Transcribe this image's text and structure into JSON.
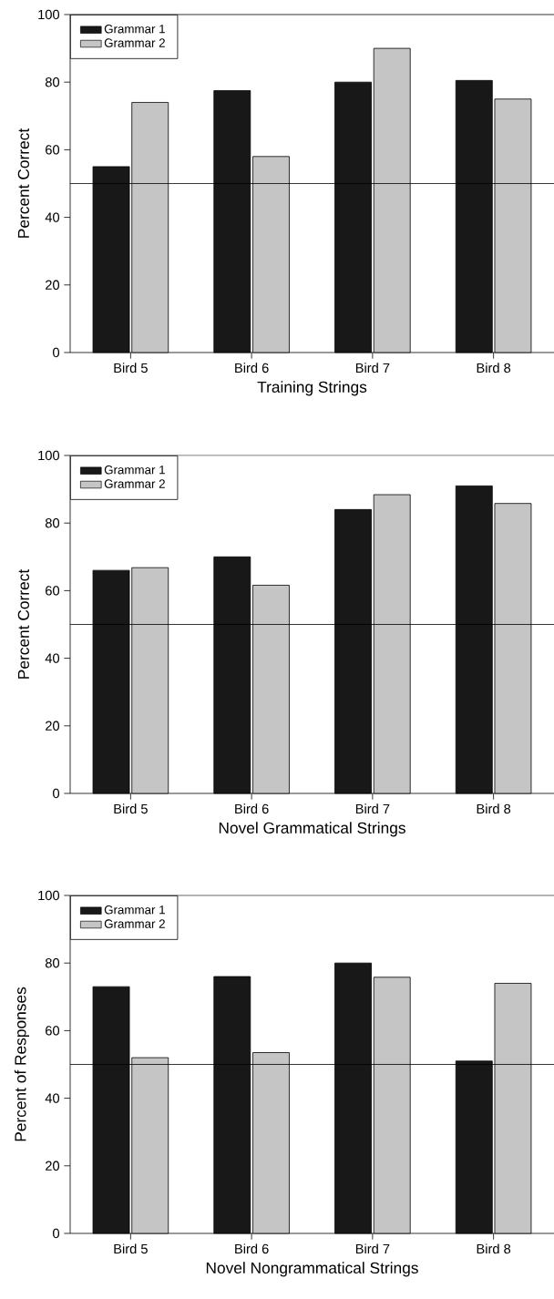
{
  "chart_data": [
    {
      "type": "bar",
      "xlabel": "Training Strings",
      "ylabel": "Percent Correct",
      "categories": [
        "Bird 5",
        "Bird 6",
        "Bird 7",
        "Bird 8"
      ],
      "series": [
        {
          "name": "Grammar 1",
          "color": "#181818",
          "values": [
            55,
            77.5,
            80,
            80.5
          ]
        },
        {
          "name": "Grammar 2",
          "color": "#c4c5c4",
          "values": [
            74,
            58,
            90,
            75
          ]
        }
      ],
      "ylim": [
        0,
        100
      ],
      "yticks": [
        0,
        20,
        40,
        60,
        80,
        100
      ],
      "legend": "top left",
      "ref_lines": [
        {
          "axis": "y",
          "value": 50
        }
      ]
    },
    {
      "type": "bar",
      "xlabel": "Novel Grammatical Strings",
      "ylabel": "Percent Correct",
      "categories": [
        "Bird 5",
        "Bird 6",
        "Bird 7",
        "Bird 8"
      ],
      "series": [
        {
          "name": "Grammar 1",
          "color": "#181818",
          "values": [
            66,
            70,
            84,
            91
          ]
        },
        {
          "name": "Grammar 2",
          "color": "#c4c5c4",
          "values": [
            66.8,
            61.6,
            88.4,
            85.8
          ]
        }
      ],
      "ylim": [
        0,
        100
      ],
      "yticks": [
        0,
        20,
        40,
        60,
        80,
        100
      ],
      "legend": "top left",
      "ref_lines": [
        {
          "axis": "y",
          "value": 50
        }
      ]
    },
    {
      "type": "bar",
      "xlabel": "Novel Nongrammatical Strings",
      "ylabel": "Percent of Responses",
      "categories": [
        "Bird 5",
        "Bird 6",
        "Bird 7",
        "Bird 8"
      ],
      "series": [
        {
          "name": "Grammar 1",
          "color": "#181818",
          "values": [
            73,
            76,
            80,
            51
          ]
        },
        {
          "name": "Grammar 2",
          "color": "#c4c5c4",
          "values": [
            52,
            53.5,
            75.8,
            74
          ]
        }
      ],
      "ylim": [
        0,
        100
      ],
      "yticks": [
        0,
        20,
        40,
        60,
        80,
        100
      ],
      "legend": "top left",
      "ref_lines": [
        {
          "axis": "y",
          "value": 50
        }
      ]
    }
  ]
}
